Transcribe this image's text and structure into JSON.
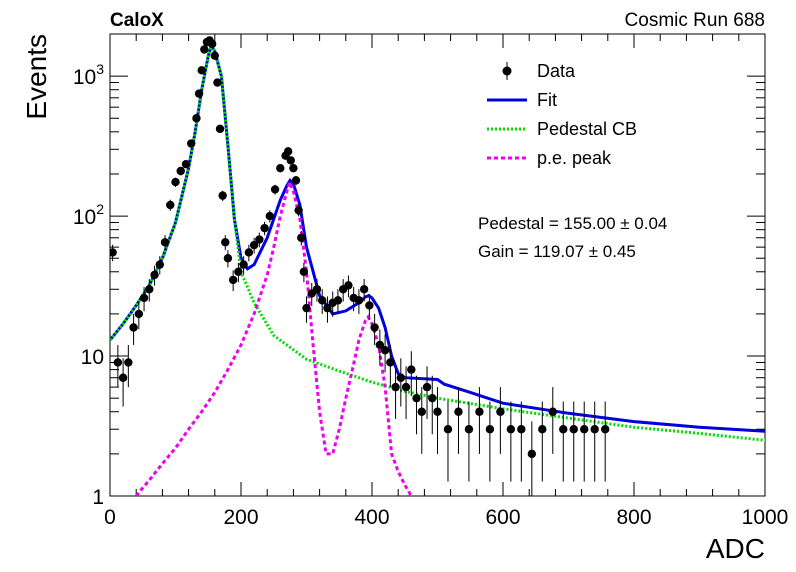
{
  "header": {
    "left": "CaloX",
    "right": "Cosmic Run 688"
  },
  "chart_data": {
    "type": "scatter",
    "xlabel": "ADC",
    "ylabel": "Events",
    "xlim": [
      0,
      1000
    ],
    "ylim": [
      1,
      2000
    ],
    "yscale": "log",
    "grid": false,
    "legend_position": "top-right",
    "x_ticks": [
      {
        "v": 0,
        "label": "0"
      },
      {
        "v": 200,
        "label": "200"
      },
      {
        "v": 400,
        "label": "400"
      },
      {
        "v": 600,
        "label": "600"
      },
      {
        "v": 800,
        "label": "800"
      },
      {
        "v": 1000,
        "label": "1000"
      }
    ],
    "y_ticks": [
      {
        "v": 1,
        "base": "1",
        "exp": ""
      },
      {
        "v": 10,
        "base": "10",
        "exp": ""
      },
      {
        "v": 100,
        "base": "10",
        "exp": "2"
      },
      {
        "v": 1000,
        "base": "10",
        "exp": "3"
      }
    ],
    "annotations": [
      {
        "text": "Pedestal = 155.00 ± 0.04"
      },
      {
        "text": "Gain = 119.07 ± 0.45"
      }
    ],
    "series": [
      {
        "name": "Data",
        "style": "points",
        "color": "#000000",
        "x": [
          4,
          12,
          20,
          28,
          36,
          44,
          52,
          60,
          68,
          76,
          84,
          92,
          100,
          108,
          116,
          124,
          132,
          136,
          140,
          144,
          148,
          152,
          156,
          160,
          164,
          168,
          172,
          176,
          180,
          188,
          196,
          204,
          212,
          220,
          228,
          236,
          244,
          252,
          260,
          268,
          272,
          276,
          280,
          284,
          288,
          292,
          296,
          300,
          308,
          316,
          324,
          332,
          340,
          348,
          356,
          364,
          372,
          380,
          388,
          396,
          404,
          412,
          420,
          428,
          436,
          444,
          452,
          460,
          468,
          476,
          484,
          492,
          500,
          516,
          532,
          548,
          564,
          580,
          596,
          612,
          628,
          644,
          660,
          676,
          692,
          708,
          724,
          740,
          756
        ],
        "y": [
          55,
          9,
          7,
          9,
          16,
          20,
          26,
          30,
          38,
          45,
          65,
          120,
          175,
          210,
          235,
          330,
          500,
          750,
          1100,
          1550,
          1750,
          1800,
          1700,
          1400,
          900,
          420,
          140,
          65,
          50,
          35,
          40,
          45,
          55,
          62,
          68,
          82,
          100,
          155,
          220,
          270,
          290,
          250,
          220,
          180,
          110,
          70,
          40,
          22,
          28,
          30,
          25,
          22,
          24,
          25,
          30,
          32,
          26,
          25,
          30,
          23,
          16,
          12,
          11,
          9,
          6,
          7,
          6,
          8,
          5,
          4,
          6,
          5,
          4,
          3,
          4,
          3,
          4,
          3,
          4,
          3,
          3,
          2,
          3,
          4,
          3,
          3,
          3,
          3,
          3
        ]
      },
      {
        "name": "Fit",
        "style": "solid",
        "color": "#0000e0",
        "x": [
          0,
          20,
          40,
          60,
          80,
          100,
          120,
          130,
          140,
          150,
          155,
          160,
          170,
          180,
          190,
          200,
          210,
          220,
          240,
          260,
          270,
          275,
          280,
          290,
          300,
          320,
          340,
          360,
          380,
          390,
          395,
          400,
          410,
          420,
          430,
          440,
          450,
          500,
          510,
          550,
          600,
          700,
          800,
          900,
          1000
        ],
        "y": [
          13,
          17,
          23,
          32,
          50,
          90,
          220,
          400,
          800,
          1400,
          1650,
          1500,
          1000,
          320,
          95,
          50,
          42,
          45,
          70,
          130,
          165,
          180,
          170,
          120,
          60,
          27,
          20,
          21,
          24,
          26.5,
          27,
          26,
          22,
          16,
          10,
          7.5,
          7,
          6.8,
          6.3,
          5.5,
          4.6,
          3.9,
          3.4,
          3.1,
          2.9
        ]
      },
      {
        "name": "Pedestal CB",
        "style": "dotted",
        "color": "#00dd00",
        "x": [
          0,
          20,
          40,
          60,
          80,
          100,
          120,
          130,
          140,
          150,
          155,
          160,
          170,
          180,
          190,
          200,
          220,
          250,
          300,
          350,
          400,
          450,
          500,
          600,
          700,
          800,
          900,
          1000
        ],
        "y": [
          13,
          17,
          23,
          32,
          50,
          90,
          220,
          400,
          800,
          1400,
          1650,
          1500,
          1000,
          320,
          95,
          40,
          24,
          14,
          9.5,
          7.8,
          6.5,
          5.6,
          5,
          4.2,
          3.6,
          3.1,
          2.8,
          2.5
        ]
      },
      {
        "name": "p.e. peak",
        "style": "dashed",
        "color": "#ee00ee",
        "x": [
          40,
          60,
          80,
          100,
          120,
          140,
          160,
          180,
          200,
          220,
          240,
          250,
          260,
          270,
          274,
          280,
          290,
          300,
          310,
          320,
          330,
          340,
          350,
          360,
          370,
          380,
          390,
          394,
          400,
          410,
          420,
          430,
          440,
          450,
          460
        ],
        "y": [
          1,
          1.3,
          1.7,
          2.2,
          3,
          4,
          5.5,
          8,
          12,
          20,
          38,
          60,
          100,
          150,
          175,
          150,
          95,
          40,
          12,
          4,
          2,
          2,
          3,
          5,
          8,
          13,
          18,
          19,
          17,
          12,
          6,
          2,
          1.5,
          1.2,
          1
        ]
      }
    ]
  }
}
